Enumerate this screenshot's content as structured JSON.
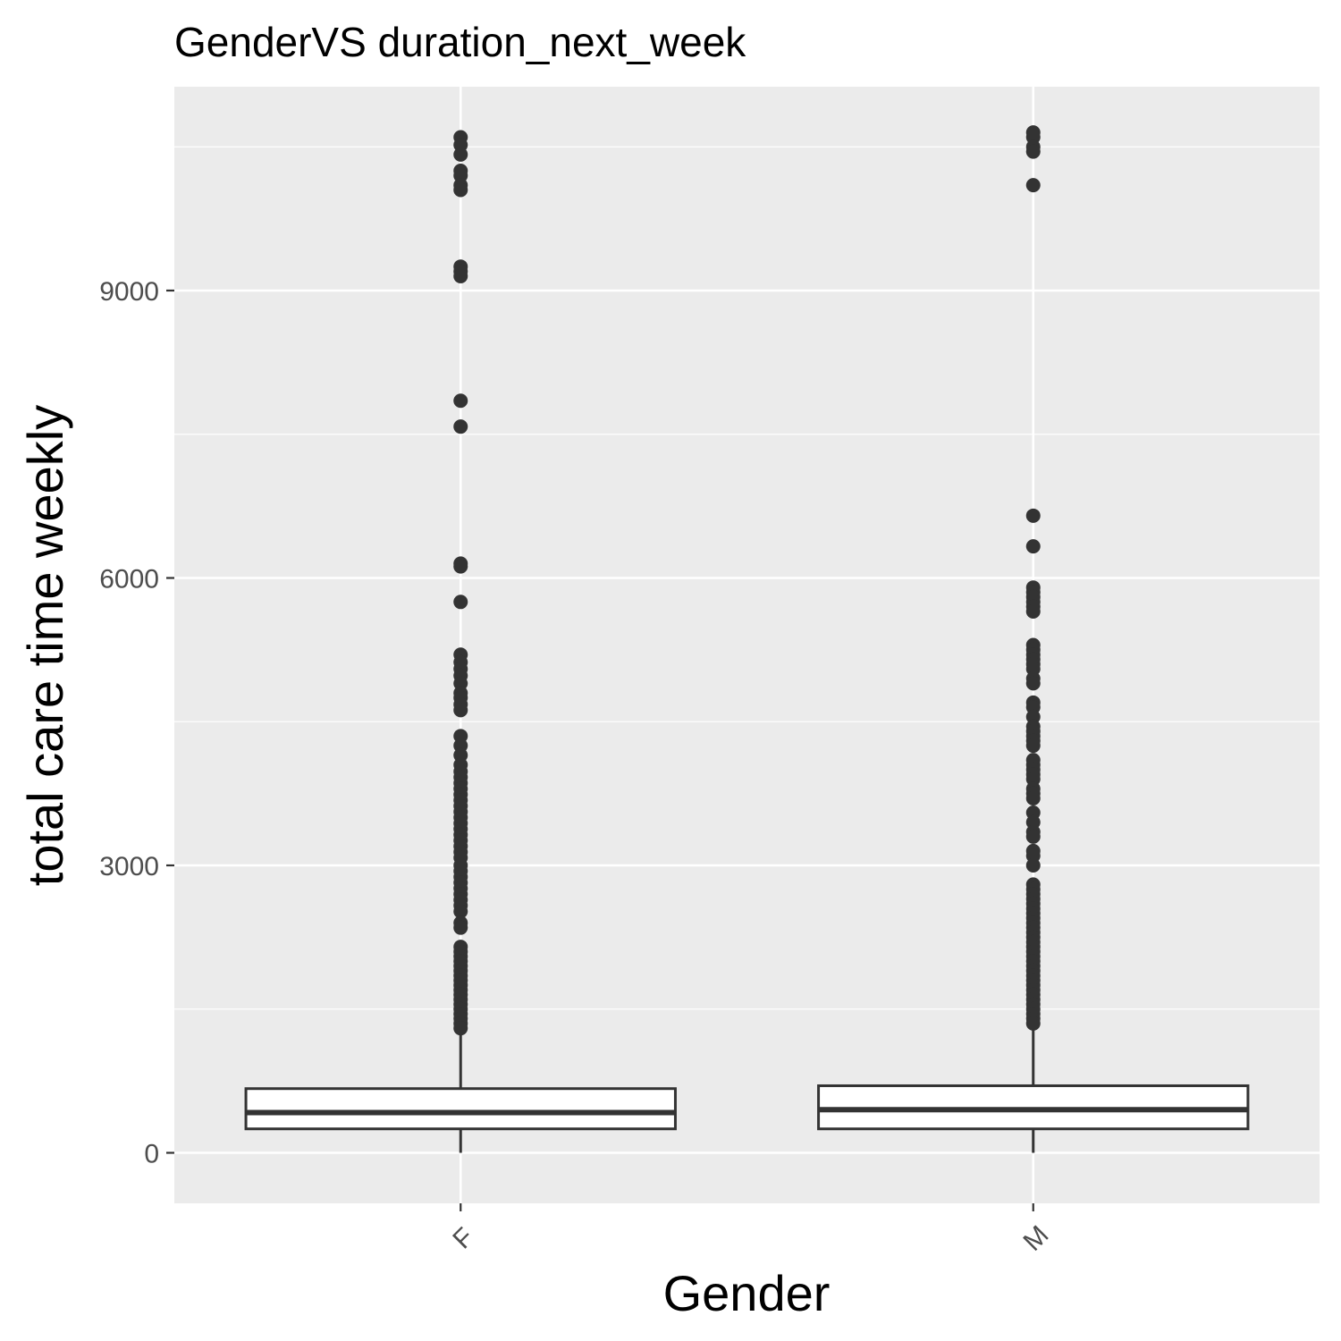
{
  "chart_data": {
    "type": "boxplot",
    "title": "GenderVS duration_next_week",
    "xlabel": "Gender",
    "ylabel": "total care time weekly",
    "categories": [
      "F",
      "M"
    ],
    "ylim": [
      -520,
      11100
    ],
    "yticks": [
      0,
      3000,
      6000,
      9000
    ],
    "ytick_labels": [
      "0",
      "3000",
      "6000",
      "9000"
    ],
    "grid": true,
    "colors": {
      "panel": "#ebebeb",
      "grid": "#ffffff",
      "box_stroke": "#333333",
      "box_fill": "#ffffff",
      "outlier": "#333333",
      "tick_label": "#4d4d4d"
    },
    "boxes": [
      {
        "category": "F",
        "whisker_low": 0,
        "q1": 250,
        "median": 420,
        "q3": 670,
        "whisker_high": 1250,
        "outliers": [
          10600,
          10520,
          10420,
          10250,
          10200,
          10100,
          10050,
          9250,
          9200,
          9150,
          7850,
          7580,
          6150,
          6120,
          5750,
          5200,
          5120,
          5050,
          4980,
          4900,
          4800,
          4750,
          4680,
          4620,
          4350,
          4250,
          4150,
          4050,
          3980,
          3920,
          3860,
          3800,
          3740,
          3680,
          3620,
          3560,
          3500,
          3440,
          3380,
          3320,
          3260,
          3200,
          3140,
          3080,
          3000,
          2940,
          2880,
          2820,
          2760,
          2700,
          2640,
          2580,
          2520,
          2400,
          2350,
          2150,
          2100,
          2050,
          2000,
          1950,
          1900,
          1850,
          1800,
          1750,
          1700,
          1650,
          1600,
          1550,
          1500,
          1450,
          1400,
          1350,
          1300
        ]
      },
      {
        "category": "M",
        "whisker_low": 0,
        "q1": 250,
        "median": 450,
        "q3": 700,
        "whisker_high": 1330,
        "outliers": [
          10650,
          10600,
          10500,
          10450,
          10100,
          6650,
          6330,
          5900,
          5850,
          5800,
          5750,
          5700,
          5650,
          5300,
          5250,
          5200,
          5150,
          5100,
          5050,
          4950,
          4900,
          4700,
          4650,
          4550,
          4450,
          4400,
          4350,
          4300,
          4250,
          4100,
          4050,
          4000,
          3950,
          3900,
          3800,
          3750,
          3700,
          3550,
          3450,
          3350,
          3300,
          3150,
          3100,
          3000,
          2800,
          2750,
          2700,
          2650,
          2600,
          2550,
          2500,
          2450,
          2400,
          2350,
          2300,
          2250,
          2200,
          2150,
          2100,
          2050,
          2000,
          1950,
          1900,
          1850,
          1800,
          1750,
          1700,
          1650,
          1600,
          1550,
          1500,
          1450,
          1400,
          1350
        ]
      }
    ]
  }
}
